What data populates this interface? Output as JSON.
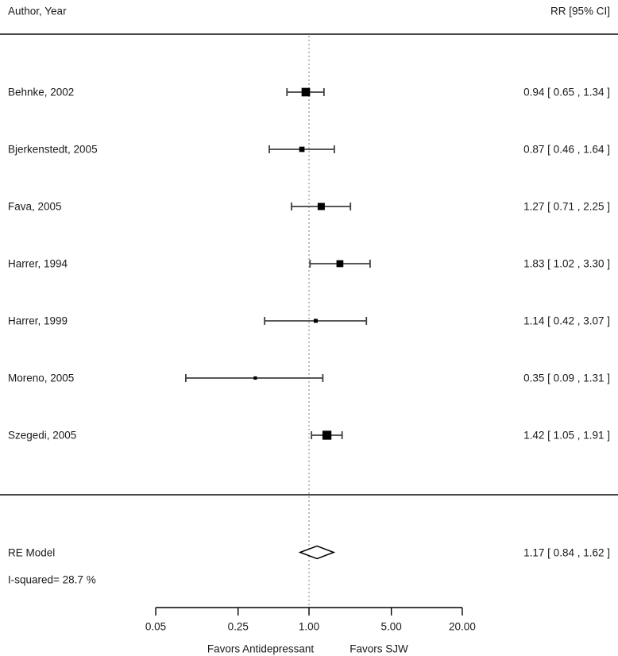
{
  "header": {
    "left_label": "Author, Year",
    "right_label": "RR [95% CI]"
  },
  "chart_data": {
    "type": "scatter",
    "subtype": "forest-plot-meta-analysis",
    "x_scale": "log",
    "x_ticks": [
      "0.05",
      "0.25",
      "1.00",
      "5.00",
      "20.00"
    ],
    "x_tick_values": [
      0.05,
      0.25,
      1.0,
      5.0,
      20.0
    ],
    "x_range": [
      0.05,
      20.0
    ],
    "reference_value": 1.0,
    "axis_label_left": "Favors Antidepressant",
    "axis_label_right": "Favors SJW",
    "effect_measure": "RR",
    "studies": [
      {
        "label": "Behnke, 2002",
        "rr": 0.94,
        "ci_low": 0.65,
        "ci_high": 1.34,
        "ci_text": "0.94 [ 0.65 , 1.34 ]",
        "marker_size": 10.7
      },
      {
        "label": "Bjerkenstedt, 2005",
        "rr": 0.87,
        "ci_low": 0.46,
        "ci_high": 1.64,
        "ci_text": "0.87 [ 0.46 , 1.64 ]",
        "marker_size": 6.7
      },
      {
        "label": "Fava, 2005",
        "rr": 1.27,
        "ci_low": 0.71,
        "ci_high": 2.25,
        "ci_text": "1.27 [ 0.71 , 2.25 ]",
        "marker_size": 9.0
      },
      {
        "label": "Harrer, 1994",
        "rr": 1.83,
        "ci_low": 1.02,
        "ci_high": 3.3,
        "ci_text": "1.83 [ 1.02 , 3.30 ]",
        "marker_size": 8.7
      },
      {
        "label": "Harrer, 1999",
        "rr": 1.14,
        "ci_low": 0.42,
        "ci_high": 3.07,
        "ci_text": "1.14 [ 0.42 , 3.07 ]",
        "marker_size": 5.0
      },
      {
        "label": "Moreno, 2005",
        "rr": 0.35,
        "ci_low": 0.09,
        "ci_high": 1.31,
        "ci_text": "0.35 [ 0.09 , 1.31 ]",
        "marker_size": 4.2
      },
      {
        "label": "Szegedi, 2005",
        "rr": 1.42,
        "ci_low": 1.05,
        "ci_high": 1.91,
        "ci_text": "1.42 [ 1.05 , 1.91 ]",
        "marker_size": 11.3
      }
    ],
    "summary": {
      "label": "RE Model",
      "rr": 1.17,
      "ci_low": 0.84,
      "ci_high": 1.62,
      "ci_text": "1.17 [ 0.84 , 1.62 ]"
    },
    "heterogeneity": "I-squared= 28.7 %"
  },
  "colors": {
    "background": "#ffffff",
    "text": "#1a1a1a",
    "rule": "#4a4a4a",
    "reference_line": "#9a9a9a",
    "ci_line": "#3f3f3f",
    "marker": "#000000",
    "diamond_fill": "#ffffff",
    "diamond_stroke": "#000000"
  }
}
